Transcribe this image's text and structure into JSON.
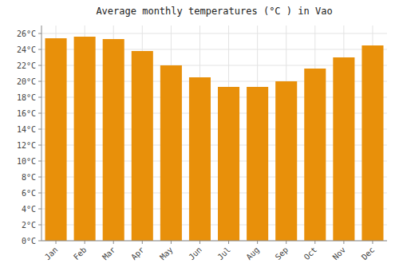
{
  "chart_data": {
    "type": "bar",
    "title": "Average monthly temperatures (°C ) in Vao",
    "categories": [
      "Jan",
      "Feb",
      "Mar",
      "Apr",
      "May",
      "Jun",
      "Jul",
      "Aug",
      "Sep",
      "Oct",
      "Nov",
      "Dec"
    ],
    "values": [
      25.4,
      25.6,
      25.3,
      23.8,
      22.0,
      20.5,
      19.3,
      19.3,
      20.0,
      21.6,
      23.0,
      24.5
    ],
    "color": "#E8900A",
    "ylim": [
      0,
      27
    ],
    "yticks": [
      {
        "value": 0,
        "label": "0°C"
      },
      {
        "value": 2,
        "label": "2°C"
      },
      {
        "value": 4,
        "label": "4°C"
      },
      {
        "value": 6,
        "label": "6°C"
      },
      {
        "value": 8,
        "label": "8°C"
      },
      {
        "value": 10,
        "label": "10°C"
      },
      {
        "value": 12,
        "label": "12°C"
      },
      {
        "value": 14,
        "label": "14°C"
      },
      {
        "value": 16,
        "label": "16°C"
      },
      {
        "value": 18,
        "label": "18°C"
      },
      {
        "value": 20,
        "label": "20°C"
      },
      {
        "value": 22,
        "label": "22°C"
      },
      {
        "value": 24,
        "label": "24°C"
      },
      {
        "value": 26,
        "label": "26°C"
      }
    ],
    "grid": true
  }
}
